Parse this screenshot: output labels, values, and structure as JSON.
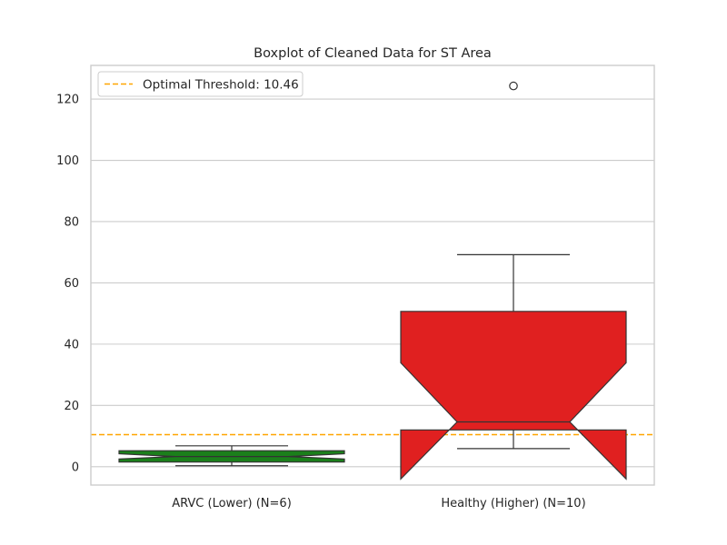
{
  "chart_data": {
    "type": "boxplot",
    "title": "Boxplot of Cleaned Data for ST Area",
    "xlabel": "",
    "ylabel": "",
    "ylim": [
      -6,
      131
    ],
    "yticks": [
      0,
      20,
      40,
      60,
      80,
      100,
      120
    ],
    "grid": "horizontal",
    "notched": true,
    "categories": [
      "ARVC (Lower) (N=6)",
      "Healthy (Higher) (N=10)"
    ],
    "boxes": [
      {
        "category": "ARVC (Lower) (N=6)",
        "color": "#1b7f1b",
        "whisker_low": 0.3,
        "q1": 1.5,
        "notch_low": 2.5,
        "median": 3.3,
        "notch_high": 4.2,
        "q3": 5.2,
        "whisker_high": 6.8,
        "outliers": []
      },
      {
        "category": "Healthy (Higher) (N=10)",
        "color": "#e02020",
        "whisker_low": 5.9,
        "q1": 12.0,
        "notch_low": -4.0,
        "median": 14.6,
        "notch_high": 33.9,
        "q3": 50.7,
        "whisker_high": 69.2,
        "outliers": [
          124.3
        ]
      }
    ],
    "threshold": {
      "value": 10.46,
      "label": "Optimal Threshold: 10.46",
      "color": "#ffa500",
      "style": "dashed"
    },
    "legend": {
      "placement": "top-left"
    }
  }
}
